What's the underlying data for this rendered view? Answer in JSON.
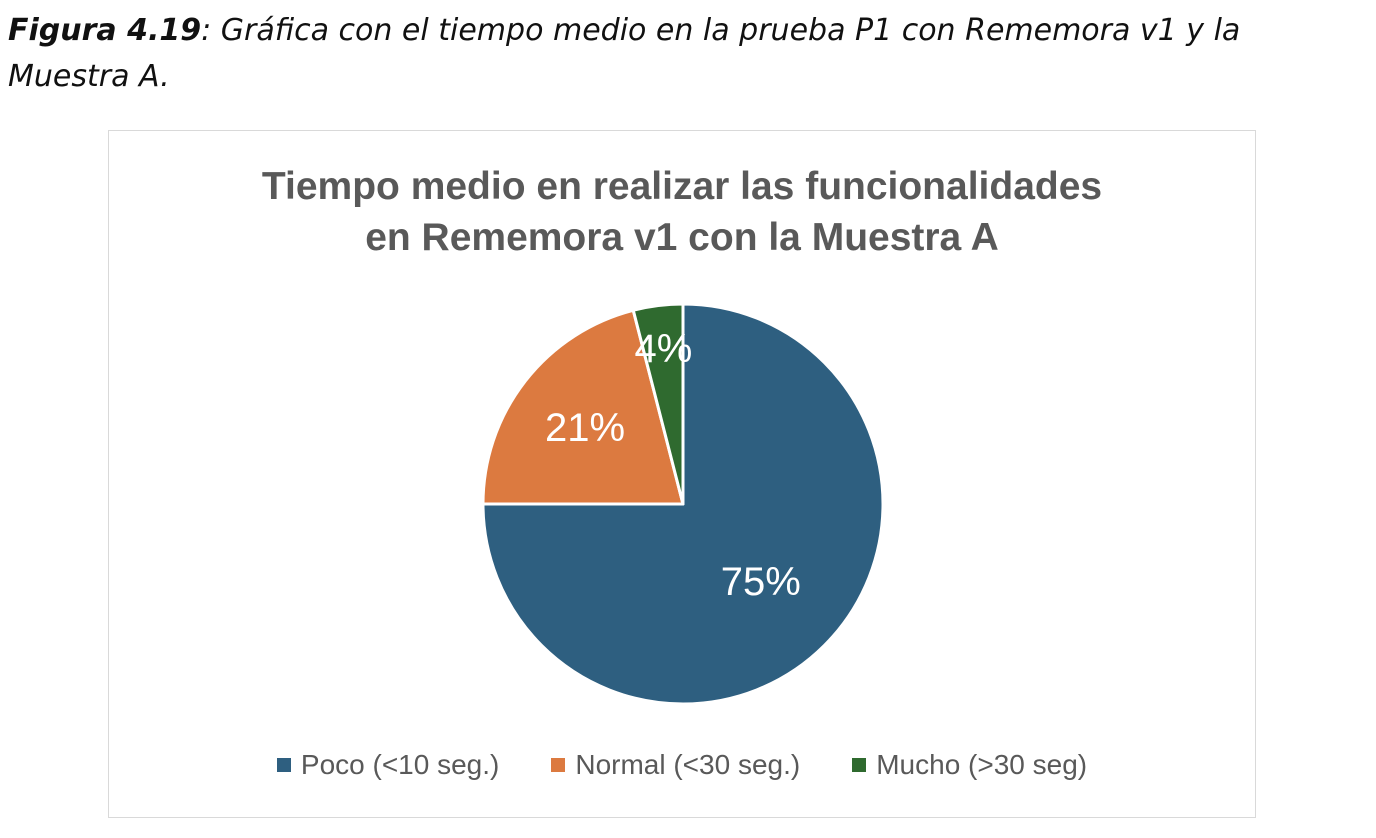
{
  "caption": {
    "label": "Figura 4.19",
    "text": ": Gráfica con el tiempo medio en la prueba P1 con Rememora v1 y la Muestra A."
  },
  "chart_data": {
    "type": "pie",
    "title_lines": [
      "Tiempo medio en realizar las funcionalidades",
      "en Rememora v1 con la Muestra A"
    ],
    "categories": [
      "Poco (<10 seg.)",
      "Normal (<30 seg.)",
      "Mucho (>30 seg)"
    ],
    "values": [
      75,
      21,
      4
    ],
    "data_labels": [
      "75%",
      "21%",
      "4%"
    ],
    "colors": [
      "#2e5f80",
      "#dc7a40",
      "#2f6a2f"
    ],
    "legend_position": "bottom"
  }
}
